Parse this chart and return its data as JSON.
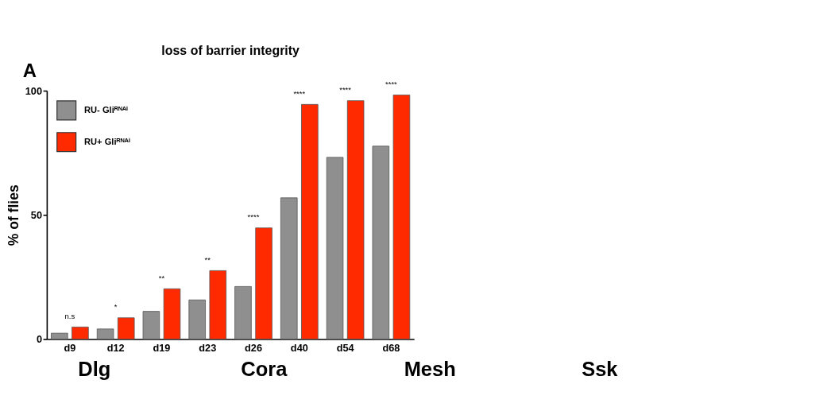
{
  "chart_data": {
    "type": "bar",
    "title": "loss of barrier integrity",
    "ylabel": "% of flies",
    "categories": [
      "d9",
      "d12",
      "d19",
      "d23",
      "d26",
      "d40",
      "d54",
      "d68"
    ],
    "series": [
      {
        "name": "RU- Gliᴿᴺᴬⁱ",
        "color": "#8f8f8f",
        "values": [
          2.4,
          4.1,
          11.2,
          15.8,
          21.2,
          56.9,
          73.2,
          77.7
        ]
      },
      {
        "name": "RU+ Gliᴿᴺᴬⁱ",
        "color": "#ff2a00",
        "values": [
          4.9,
          8.6,
          20.3,
          27.6,
          44.8,
          94.5,
          96.0,
          98.3
        ]
      }
    ],
    "ylim": [
      0,
      100
    ],
    "yticks": [
      0,
      50,
      100
    ],
    "grid": false,
    "legend": "top left",
    "annotations": [
      "A",
      "Dlg",
      "Cora",
      "Mesh",
      "Ssk",
      "n.s",
      "*",
      "**",
      "**",
      "****",
      "****",
      "****",
      "****"
    ]
  }
}
